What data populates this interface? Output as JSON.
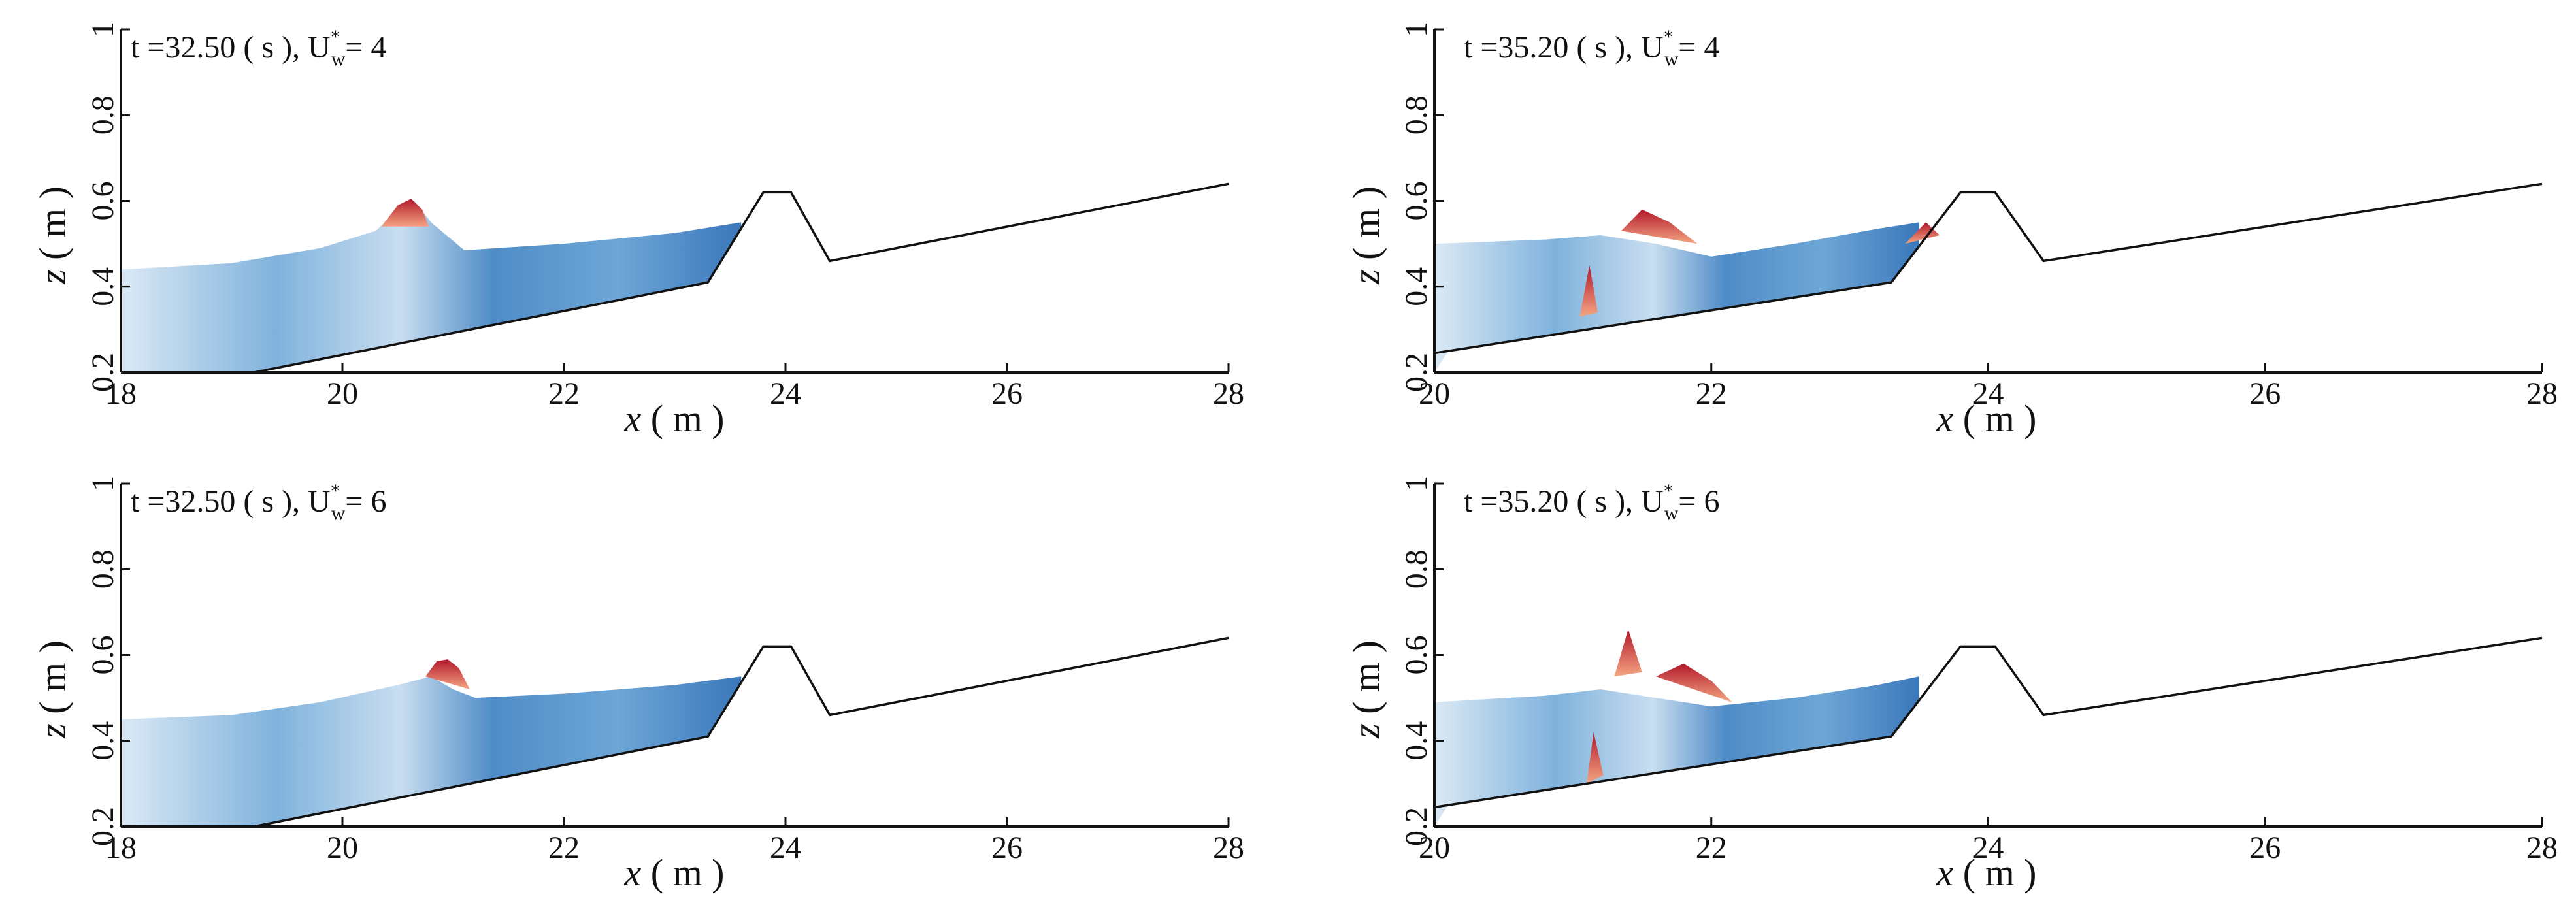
{
  "colors": {
    "water_light": "#dbe9f5",
    "water_mid": "#8fbde0",
    "water_dark": "#2f6fb3",
    "splash": "#b2182b",
    "splash_light": "#f4a582",
    "axis": "#111111"
  },
  "chart_data": [
    {
      "type": "area",
      "title_text": "t =32.50 ( s ), U",
      "title_sup": "*",
      "title_sub": "w",
      "title_tail": "= 4",
      "xlabel_var": "x",
      "xlabel_unit": " ( m )",
      "ylabel_var": "z",
      "ylabel_unit": " ( m )",
      "xlim": [
        18,
        28
      ],
      "ylim": [
        0.2,
        1.0
      ],
      "xticks": [
        "18",
        "20",
        "22",
        "24",
        "26",
        "28"
      ],
      "yticks": [
        "0.2",
        "0.4",
        "0.6",
        "0.8",
        "1"
      ],
      "terrain": {
        "x": [
          19.2,
          23.3,
          23.8,
          24.05,
          24.4,
          28.0
        ],
        "z": [
          0.2,
          0.41,
          0.62,
          0.62,
          0.46,
          0.64
        ]
      },
      "surface": {
        "x": [
          18.0,
          19.0,
          19.8,
          20.3,
          20.55,
          20.65,
          20.8,
          21.1,
          22.0,
          23.0,
          23.6
        ],
        "z": [
          0.44,
          0.455,
          0.49,
          0.53,
          0.59,
          0.6,
          0.55,
          0.485,
          0.5,
          0.525,
          0.55
        ]
      },
      "splash": [
        {
          "x": [
            20.35,
            20.5,
            20.62,
            20.72,
            20.78
          ],
          "z": [
            0.54,
            0.59,
            0.605,
            0.58,
            0.54
          ]
        }
      ]
    },
    {
      "type": "area",
      "title_text": "t =35.20 ( s ), U",
      "title_sup": "*",
      "title_sub": "w",
      "title_tail": "= 4",
      "xlabel_var": "x",
      "xlabel_unit": " ( m )",
      "ylabel_var": "z",
      "ylabel_unit": " ( m )",
      "xlim": [
        20,
        28
      ],
      "ylim": [
        0.2,
        1.0
      ],
      "xticks": [
        "20",
        "22",
        "24",
        "26",
        "28"
      ],
      "yticks": [
        "0.2",
        "0.4",
        "0.6",
        "0.8",
        "1"
      ],
      "terrain": {
        "x": [
          20.0,
          23.3,
          23.8,
          24.05,
          24.4,
          28.0
        ],
        "z": [
          0.245,
          0.41,
          0.62,
          0.62,
          0.46,
          0.64
        ]
      },
      "surface": {
        "x": [
          20.0,
          20.8,
          21.2,
          21.6,
          22.0,
          22.6,
          23.2,
          23.5
        ],
        "z": [
          0.5,
          0.51,
          0.52,
          0.5,
          0.47,
          0.5,
          0.535,
          0.55
        ]
      },
      "splash": [
        {
          "x": [
            21.35,
            21.5,
            21.7,
            21.9
          ],
          "z": [
            0.53,
            0.58,
            0.55,
            0.5
          ]
        },
        {
          "x": [
            21.05,
            21.12,
            21.18
          ],
          "z": [
            0.33,
            0.45,
            0.34
          ]
        },
        {
          "x": [
            23.4,
            23.55,
            23.65
          ],
          "z": [
            0.5,
            0.55,
            0.52
          ]
        }
      ]
    },
    {
      "type": "area",
      "title_text": "t =32.50 ( s ), U",
      "title_sup": "*",
      "title_sub": "w",
      "title_tail": "= 6",
      "xlabel_var": "x",
      "xlabel_unit": " ( m )",
      "ylabel_var": "z",
      "ylabel_unit": " ( m )",
      "xlim": [
        18,
        28
      ],
      "ylim": [
        0.2,
        1.0
      ],
      "xticks": [
        "18",
        "20",
        "22",
        "24",
        "26",
        "28"
      ],
      "yticks": [
        "0.2",
        "0.4",
        "0.6",
        "0.8",
        "1"
      ],
      "terrain": {
        "x": [
          19.2,
          23.3,
          23.8,
          24.05,
          24.4,
          28.0
        ],
        "z": [
          0.2,
          0.41,
          0.62,
          0.62,
          0.46,
          0.64
        ]
      },
      "surface": {
        "x": [
          18.0,
          19.0,
          19.8,
          20.5,
          20.8,
          21.0,
          21.2,
          22.0,
          23.0,
          23.6
        ],
        "z": [
          0.45,
          0.46,
          0.49,
          0.53,
          0.55,
          0.52,
          0.5,
          0.51,
          0.53,
          0.55
        ]
      },
      "splash": [
        {
          "x": [
            20.75,
            20.85,
            20.95,
            21.05,
            21.15
          ],
          "z": [
            0.55,
            0.585,
            0.59,
            0.57,
            0.52
          ]
        }
      ]
    },
    {
      "type": "area",
      "title_text": "t =35.20 ( s ), U",
      "title_sup": "*",
      "title_sub": "w",
      "title_tail": "= 6",
      "xlabel_var": "x",
      "xlabel_unit": " ( m )",
      "ylabel_var": "z",
      "ylabel_unit": " ( m )",
      "xlim": [
        20,
        28
      ],
      "ylim": [
        0.2,
        1.0
      ],
      "xticks": [
        "20",
        "22",
        "24",
        "26",
        "28"
      ],
      "yticks": [
        "0.2",
        "0.4",
        "0.6",
        "0.8",
        "1"
      ],
      "terrain": {
        "x": [
          20.0,
          23.3,
          23.8,
          24.05,
          24.4,
          28.0
        ],
        "z": [
          0.245,
          0.41,
          0.62,
          0.62,
          0.46,
          0.64
        ]
      },
      "surface": {
        "x": [
          20.0,
          20.8,
          21.2,
          21.6,
          22.0,
          22.6,
          23.2,
          23.5
        ],
        "z": [
          0.49,
          0.505,
          0.52,
          0.5,
          0.48,
          0.5,
          0.53,
          0.55
        ]
      },
      "splash": [
        {
          "x": [
            21.3,
            21.4,
            21.5
          ],
          "z": [
            0.55,
            0.66,
            0.56
          ]
        },
        {
          "x": [
            21.6,
            21.8,
            22.0,
            22.15
          ],
          "z": [
            0.55,
            0.58,
            0.54,
            0.49
          ]
        },
        {
          "x": [
            21.1,
            21.15,
            21.22
          ],
          "z": [
            0.3,
            0.42,
            0.32
          ]
        }
      ]
    }
  ]
}
